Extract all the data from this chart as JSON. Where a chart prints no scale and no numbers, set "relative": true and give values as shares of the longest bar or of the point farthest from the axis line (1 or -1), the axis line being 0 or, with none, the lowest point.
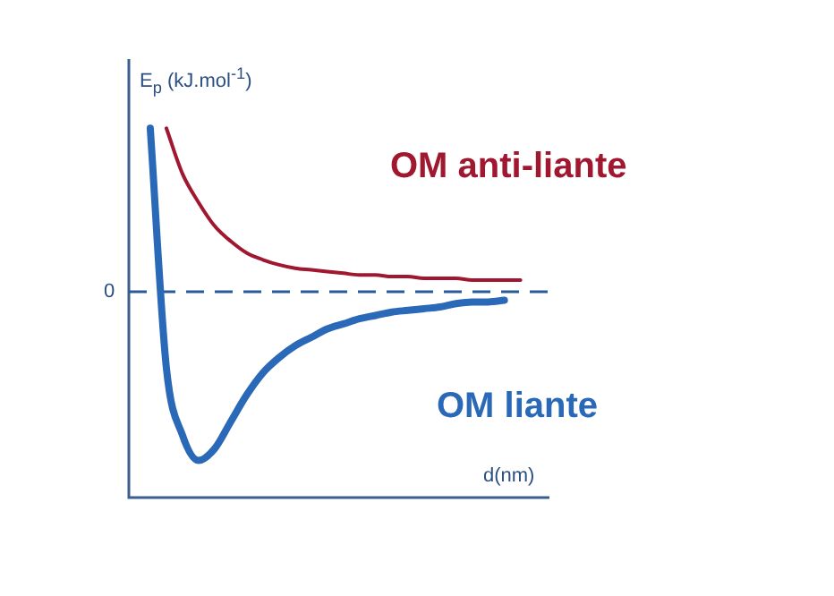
{
  "chart_data": {
    "type": "line",
    "relative": true,
    "xlabel": "d(nm)",
    "ylabel": "E$_{p}$ (kJ.mol$^{-1}$)",
    "legend": false,
    "marker": "none",
    "line_style": "solid",
    "categories": [
      null,
      null,
      null,
      null,
      null,
      null,
      null,
      null,
      null,
      null,
      null,
      null,
      null,
      null,
      null,
      null,
      null,
      null,
      null,
      null,
      null,
      null,
      null,
      null
    ],
    "series": [
      {
        "name": "OM anti-liante",
        "color": "#a01830",
        "values": [
          null,
          0.97,
          0.7,
          0.53,
          0.39,
          0.3,
          0.23,
          0.19,
          0.16,
          0.14,
          0.13,
          0.12,
          0.11,
          0.1,
          0.1,
          0.09,
          0.09,
          0.08,
          0.08,
          0.08,
          0.07,
          0.07,
          0.07,
          0.07
        ]
      },
      {
        "name": "OM liante",
        "color": "#2a68b8",
        "values": [
          0.97,
          -0.45,
          -0.85,
          -1.0,
          -0.93,
          -0.77,
          -0.61,
          -0.48,
          -0.39,
          -0.32,
          -0.27,
          -0.22,
          -0.19,
          -0.16,
          -0.14,
          -0.12,
          -0.11,
          -0.1,
          -0.09,
          -0.07,
          -0.06,
          -0.06,
          -0.05,
          null
        ]
      }
    ],
    "ref_lines": [
      {
        "axis": "y",
        "value": 0,
        "label": "0",
        "color": "#2a5a9a",
        "line_style": "dashed"
      }
    ]
  }
}
